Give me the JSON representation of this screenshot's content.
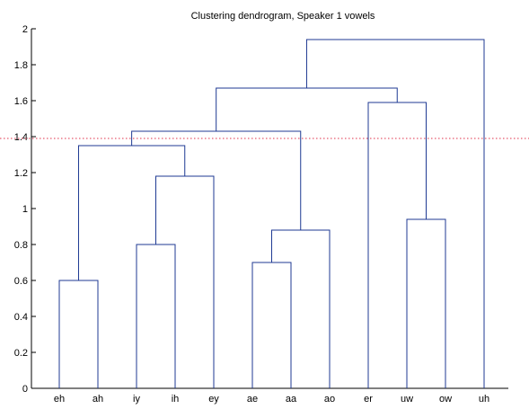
{
  "chart_data": {
    "type": "dendrogram",
    "title": "Clustering dendrogram, Speaker 1 vowels",
    "xlabel": "",
    "ylabel": "",
    "ylim": [
      0,
      2
    ],
    "yticks": [
      0,
      0.2,
      0.4,
      0.6,
      0.8,
      1,
      1.2,
      1.4,
      1.6,
      1.8,
      2
    ],
    "ytick_labels": [
      "0",
      "0.2",
      "0.4",
      "0.6",
      "0.8",
      "1",
      "1.2",
      "1.4",
      "1.6",
      "1.8",
      "2"
    ],
    "leaves": [
      "eh",
      "ah",
      "iy",
      "ih",
      "ey",
      "ae",
      "aa",
      "ao",
      "er",
      "uw",
      "ow",
      "uh"
    ],
    "merges": [
      {
        "left": "eh",
        "right": "ah",
        "height": 0.6,
        "id": "c1"
      },
      {
        "left": "iy",
        "right": "ih",
        "height": 0.8,
        "id": "c2"
      },
      {
        "left": "c2",
        "right": "ey",
        "height": 1.18,
        "id": "c3"
      },
      {
        "left": "c1",
        "right": "c3",
        "height": 1.35,
        "id": "c4"
      },
      {
        "left": "ae",
        "right": "aa",
        "height": 0.7,
        "id": "c5"
      },
      {
        "left": "c5",
        "right": "ao",
        "height": 0.88,
        "id": "c6"
      },
      {
        "left": "c4",
        "right": "c6",
        "height": 1.43,
        "id": "c7"
      },
      {
        "left": "ow",
        "right": "uw",
        "height": 0.94,
        "id": "c8"
      },
      {
        "left": "er",
        "right": "c8",
        "height": 1.59,
        "id": "c9"
      },
      {
        "left": "c7",
        "right": "c9",
        "height": 1.67,
        "id": "c10"
      },
      {
        "left": "c10",
        "right": "uh",
        "height": 1.94,
        "id": "c11"
      }
    ],
    "threshold": 1.39,
    "colors": {
      "links": "#1f3a93",
      "threshold": "#e0304a",
      "axes": "#000000"
    },
    "grid": false
  }
}
